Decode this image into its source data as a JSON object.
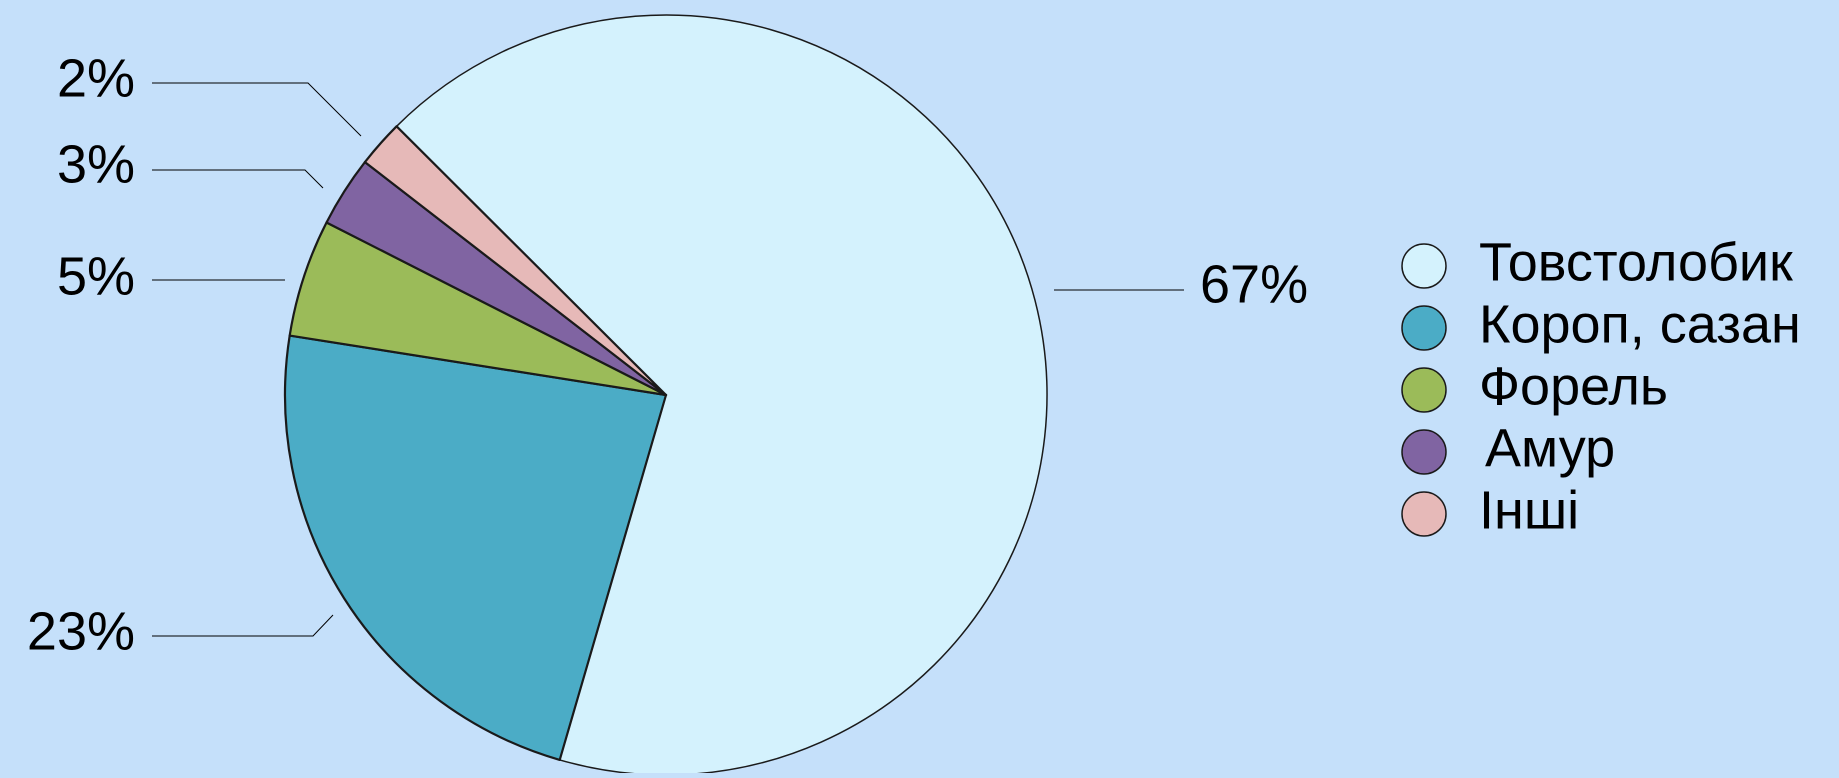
{
  "chart_data": {
    "type": "pie",
    "slices": [
      {
        "label": "Товстолобик",
        "value": 67,
        "value_label": "67%",
        "color": "#d4f2fd"
      },
      {
        "label": "Короп, сазан",
        "value": 23,
        "value_label": "23%",
        "color": "#4bacc6"
      },
      {
        "label": "Форель",
        "value": 5,
        "value_label": "5%",
        "color": "#9bbb59"
      },
      {
        "label": "Амур",
        "value": 3,
        "value_label": "3%",
        "color": "#8064a2"
      },
      {
        "label": "Інші",
        "value": 2,
        "value_label": "2%",
        "color": "#e6b9b8"
      }
    ],
    "legend_placement": "right",
    "background_color": "#c5e0fa"
  }
}
